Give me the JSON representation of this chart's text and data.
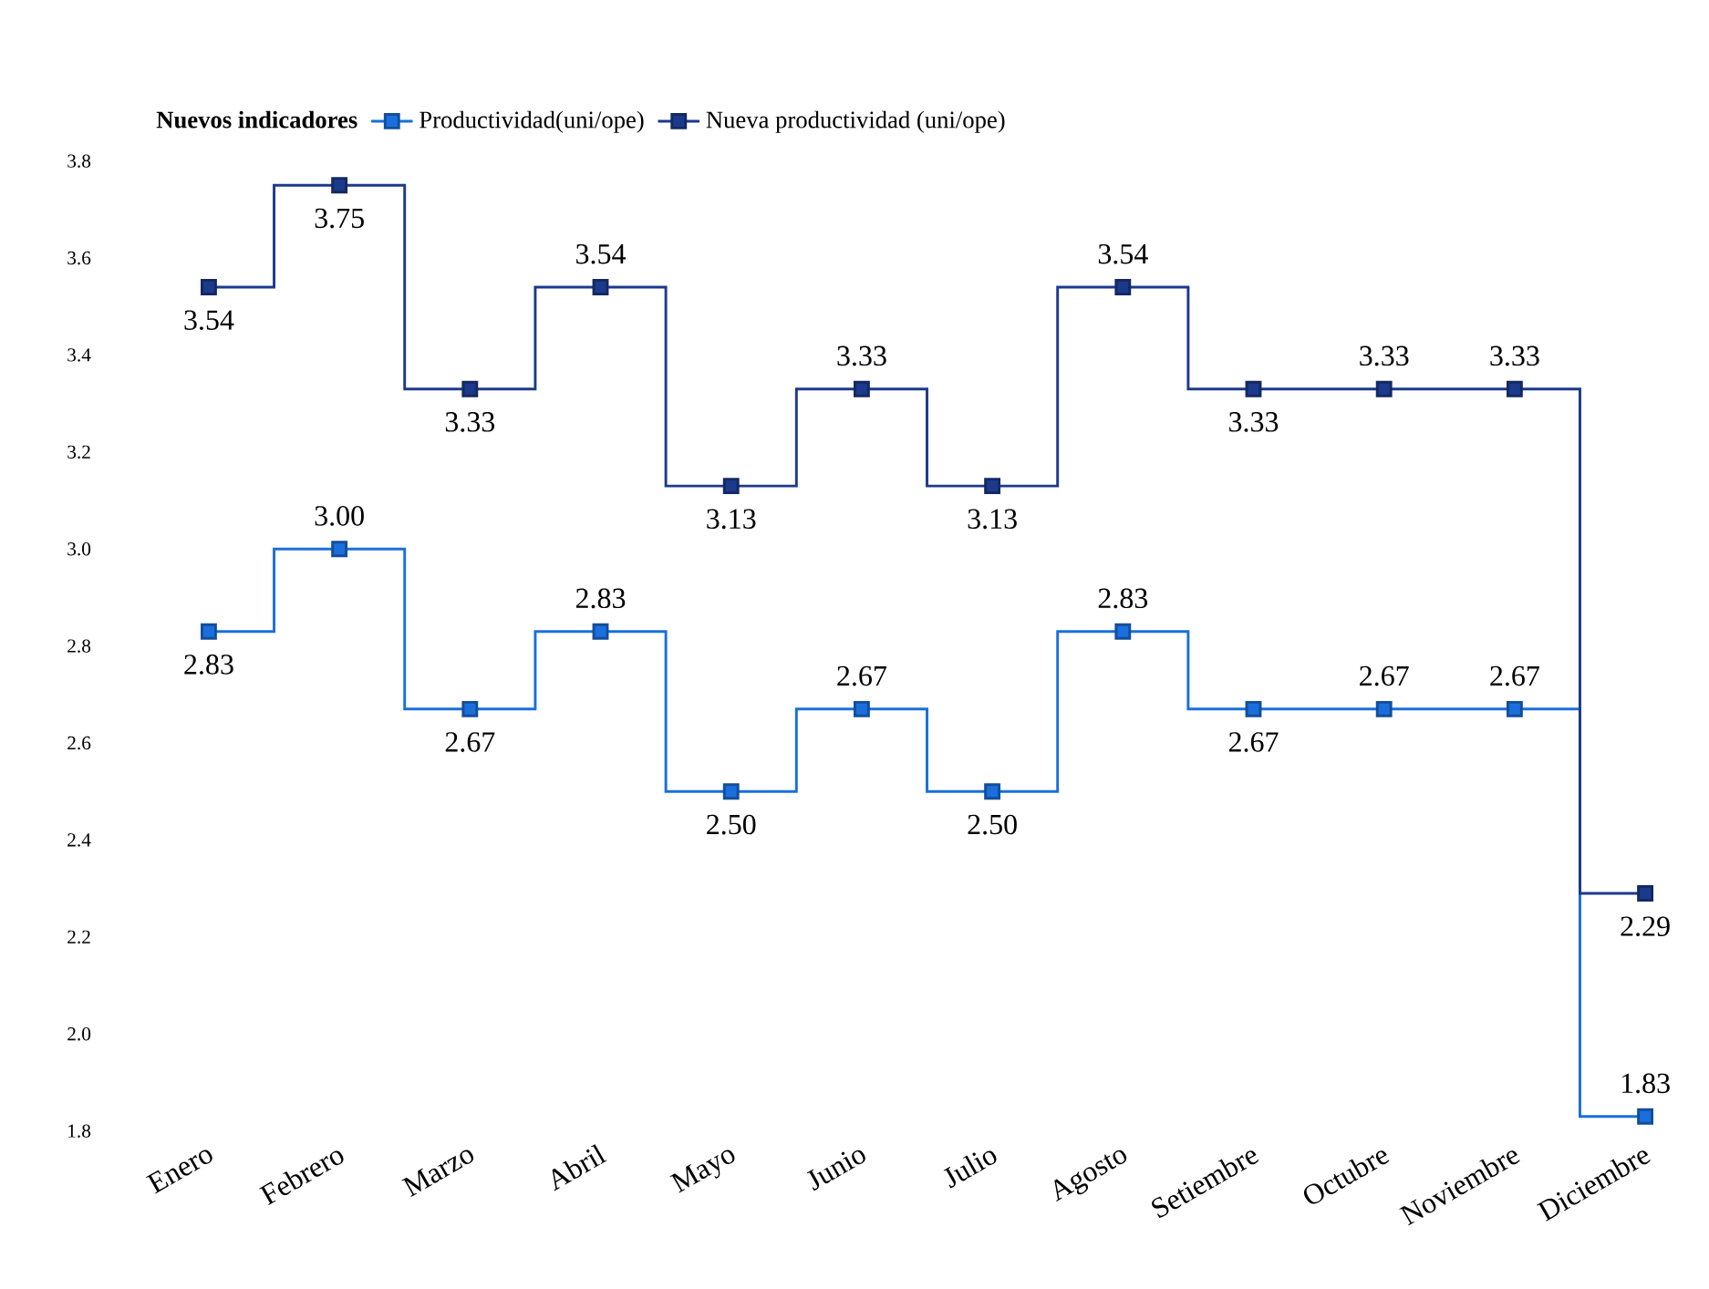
{
  "chart_data": {
    "type": "step",
    "legend_title": "Nuevos indicadores",
    "categories": [
      "Enero",
      "Febrero",
      "Marzo",
      "Abril",
      "Mayo",
      "Junio",
      "Julio",
      "Agosto",
      "Setiembre",
      "Octubre",
      "Noviembre",
      "Diciembre"
    ],
    "series": [
      {
        "name": "Productividad(uni/ope)",
        "color": "#1a6fdc",
        "values": [
          2.83,
          3.0,
          2.67,
          2.83,
          2.5,
          2.67,
          2.5,
          2.83,
          2.67,
          2.67,
          2.67,
          1.83
        ],
        "value_labels": [
          "2.83",
          "3.00",
          "2.67",
          "2.83",
          "2.50",
          "2.67",
          "2.50",
          "2.83",
          "2.67",
          "2.67",
          "2.67",
          "1.83"
        ]
      },
      {
        "name": "Nueva productividad  (uni/ope)",
        "color": "#1c3a8c",
        "values": [
          3.54,
          3.75,
          3.33,
          3.54,
          3.13,
          3.33,
          3.13,
          3.54,
          3.33,
          3.33,
          3.33,
          2.29
        ],
        "value_labels": [
          "3.54",
          "3.75",
          "3.33",
          "3.54",
          "3.13",
          "3.33",
          "3.13",
          "3.54",
          "3.33",
          "3.33",
          "3.33",
          "2.29"
        ]
      }
    ],
    "ylim": [
      1.8,
      3.8
    ],
    "yticks": [
      1.8,
      {
        "value": 2.0,
        "label": "2.0"
      },
      2.2,
      2.4,
      2.6,
      2.8,
      {
        "value": 3.0,
        "label": "3.0"
      },
      3.2,
      3.4,
      3.6,
      3.8
    ],
    "legend": "top left",
    "marker": "square",
    "grid": false
  }
}
